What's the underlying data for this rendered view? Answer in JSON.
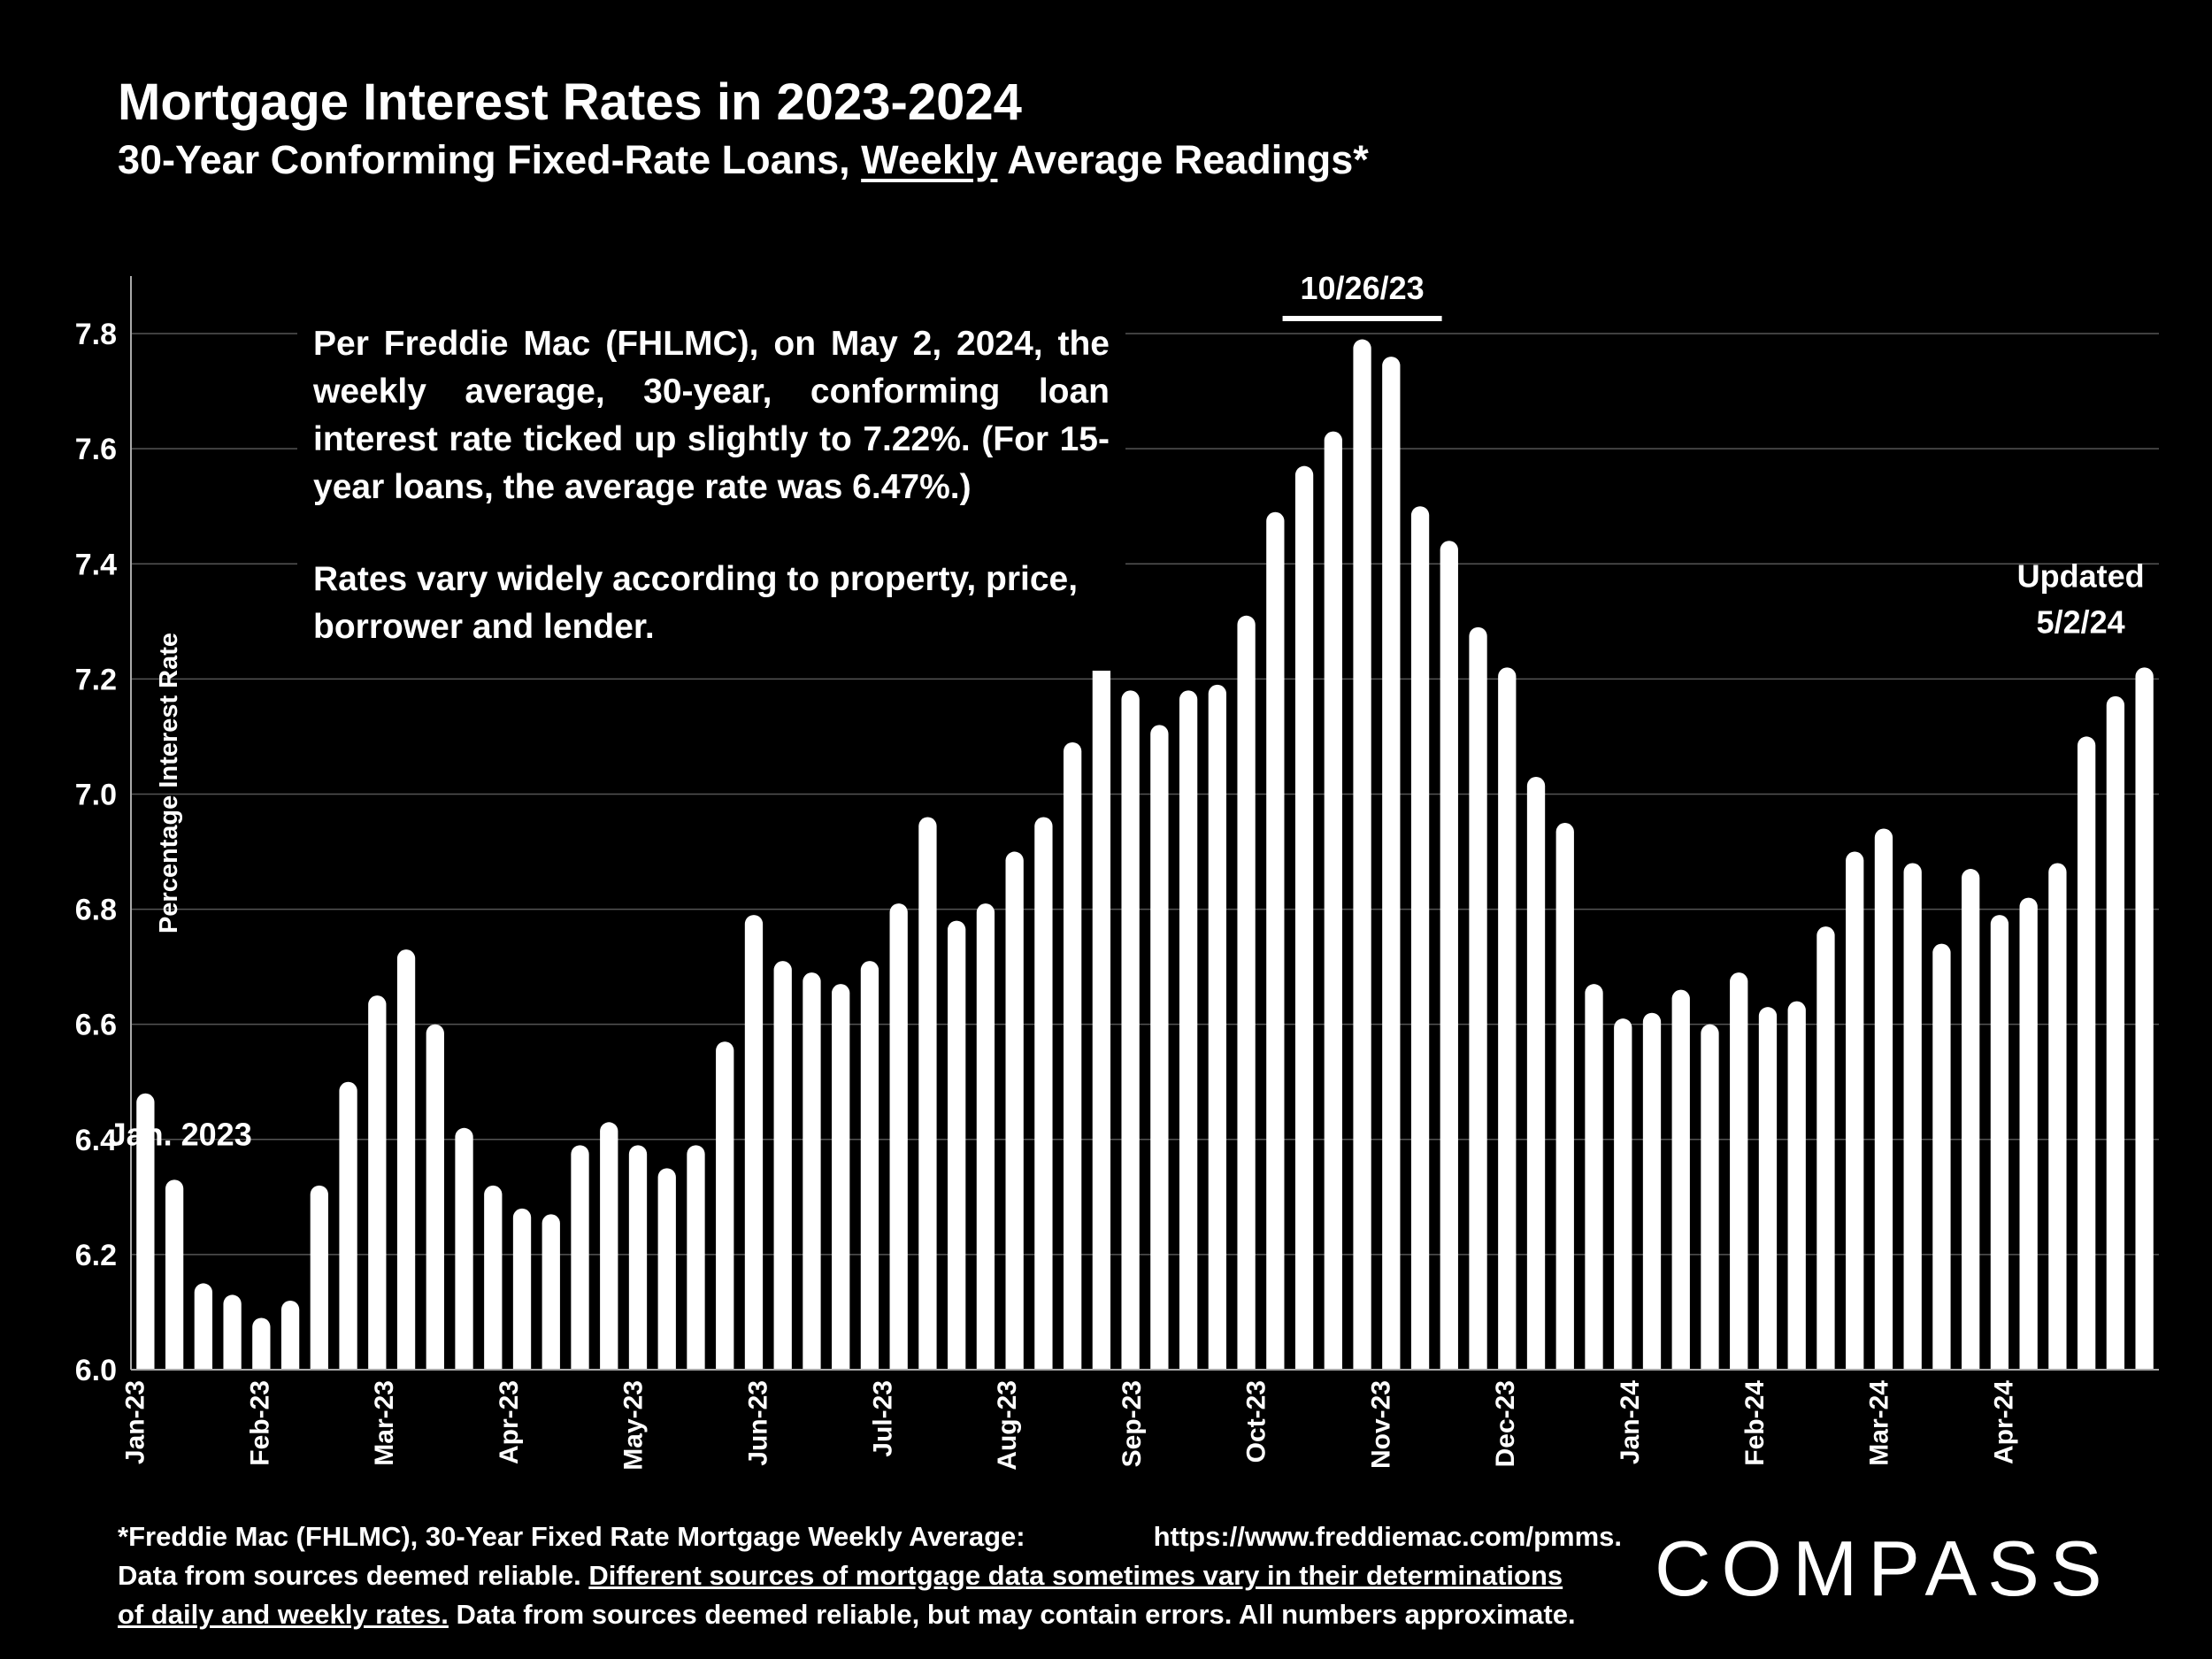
{
  "title": "Mortgage Interest Rates in 2023-2024",
  "subtitle_pre": "30-Year Conforming Fixed-Rate Loans, ",
  "subtitle_emph": "Weekly",
  "subtitle_post": " Average Readings*",
  "note": {
    "para1": "Per Freddie Mac (FHLMC), on May 2, 2024, the weekly average, 30-year, conforming loan interest rate ticked up slightly to 7.22%. (For 15-year loans, the average rate was 6.47%.)",
    "para2": "Rates vary widely according to property, price, borrower and lender."
  },
  "footer": {
    "line1_left": "*Freddie Mac (FHLMC), 30-Year Fixed Rate Mortgage Weekly Average:",
    "line1_right": "https://www.freddiemac.com/pmms.",
    "line2_pre": "Data from sources deemed reliable. ",
    "line2_u": "Different sources of mortgage data sometimes vary in their determinations",
    "line3_u": "of daily and weekly rates.",
    "line3_post": " Data from sources deemed reliable, but may contain errors. All numbers approximate."
  },
  "logo": "COMPASS",
  "colors": {
    "background": "#000000",
    "bar": "#ffffff",
    "grid": "#555555"
  },
  "chart_data": {
    "type": "bar",
    "ylabel": "Percentage Interest  Rate",
    "ylim": [
      6.0,
      7.9
    ],
    "yticks": [
      "6.0",
      "6.2",
      "6.4",
      "6.6",
      "6.8",
      "7.0",
      "7.2",
      "7.4",
      "7.6",
      "7.8"
    ],
    "grid": true,
    "values": [
      6.48,
      6.33,
      6.15,
      6.13,
      6.09,
      6.12,
      6.32,
      6.5,
      6.65,
      6.73,
      6.6,
      6.42,
      6.32,
      6.28,
      6.27,
      6.39,
      6.43,
      6.39,
      6.35,
      6.39,
      6.57,
      6.79,
      6.71,
      6.69,
      6.67,
      6.71,
      6.81,
      6.96,
      6.78,
      6.81,
      6.9,
      6.96,
      7.09,
      7.23,
      7.18,
      7.12,
      7.18,
      7.19,
      7.31,
      7.49,
      7.57,
      7.63,
      7.79,
      7.76,
      7.5,
      7.44,
      7.29,
      7.22,
      7.03,
      6.95,
      6.67,
      6.61,
      6.62,
      6.66,
      6.6,
      6.69,
      6.63,
      6.64,
      6.77,
      6.9,
      6.94,
      6.88,
      6.74,
      6.87,
      6.79,
      6.82,
      6.88,
      7.1,
      7.17,
      7.22
    ],
    "x_tick_labels": [
      {
        "label": "Jan-23",
        "index": 0
      },
      {
        "label": "Feb-23",
        "index": 4.3
      },
      {
        "label": "Mar-23",
        "index": 8.6
      },
      {
        "label": "Apr-23",
        "index": 12.9
      },
      {
        "label": "May-23",
        "index": 17.2
      },
      {
        "label": "Jun-23",
        "index": 21.5
      },
      {
        "label": "Jul-23",
        "index": 25.8
      },
      {
        "label": "Aug-23",
        "index": 30.1
      },
      {
        "label": "Sep-23",
        "index": 34.4
      },
      {
        "label": "Oct-23",
        "index": 38.7
      },
      {
        "label": "Nov-23",
        "index": 43
      },
      {
        "label": "Dec-23",
        "index": 47.3
      },
      {
        "label": "Jan-24",
        "index": 51.6
      },
      {
        "label": "Feb-24",
        "index": 55.9
      },
      {
        "label": "Mar-24",
        "index": 60.2
      },
      {
        "label": "Apr-24",
        "index": 64.5
      }
    ],
    "annotations": [
      {
        "text": "Jan. 2023",
        "index": 1.2,
        "value": 6.39
      },
      {
        "text": "10/26/23",
        "index": 42,
        "value": 7.86,
        "marker": "bracket"
      },
      {
        "text": "Updated",
        "index": 66.8,
        "value": 7.36
      },
      {
        "text": "5/2/24",
        "index": 66.8,
        "value": 7.28
      }
    ]
  }
}
